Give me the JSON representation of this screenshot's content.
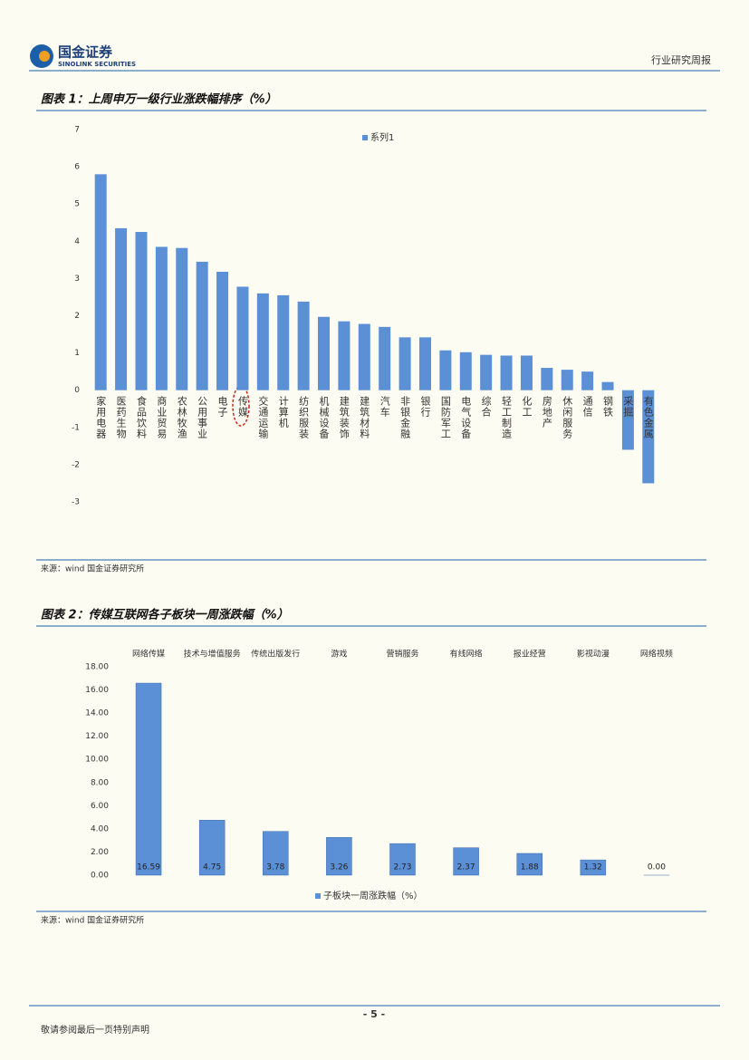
{
  "header": {
    "logo_cn": "国金证券",
    "logo_en": "SINOLINK SECURITIES",
    "right": "行业研究周报"
  },
  "figures": [
    {
      "title": "图表 1：上周申万一级行业涨跌幅排序（%）",
      "source": "来源：wind 国金证券研究所"
    },
    {
      "title": "图表 2：传媒互联网各子板块一周涨跌幅（%）",
      "source": "来源：wind 国金证券研究所"
    }
  ],
  "chart_data": [
    {
      "type": "bar",
      "legend": "top",
      "categories": [
        "家用电器",
        "医药生物",
        "食品饮料",
        "商业贸易",
        "农林牧渔",
        "公用事业",
        "电子",
        "传媒",
        "交通运输",
        "计算机",
        "纺织服装",
        "机械设备",
        "建筑装饰",
        "建筑材料",
        "汽车",
        "非银金融",
        "银行",
        "国防军工",
        "电气设备",
        "综合",
        "轻工制造",
        "化工",
        "房地产",
        "休闲服务",
        "通信",
        "钢铁",
        "采掘",
        "有色金属"
      ],
      "series": [
        {
          "name": "系列1",
          "color": "#5b8fd6",
          "values": [
            5.8,
            4.35,
            4.25,
            3.85,
            3.82,
            3.45,
            3.18,
            2.78,
            2.6,
            2.55,
            2.38,
            1.97,
            1.85,
            1.78,
            1.7,
            1.42,
            1.42,
            1.07,
            1.02,
            0.95,
            0.93,
            0.93,
            0.6,
            0.55,
            0.5,
            0.22,
            -1.6,
            -2.5
          ]
        }
      ],
      "ylim": [
        -3,
        7
      ],
      "yticks": [
        7,
        6,
        5,
        4,
        3,
        2,
        1,
        0,
        -1,
        -2,
        -3
      ]
    },
    {
      "type": "bar",
      "legend": "bottom",
      "categories": [
        "网络传媒",
        "技术与增值服务",
        "传统出版发行",
        "游戏",
        "营销服务",
        "有线网络",
        "报业经营",
        "影视动漫",
        "网络视频"
      ],
      "series": [
        {
          "name": "子板块一周涨跌幅（%）",
          "color": "#5b8fd6",
          "values": [
            16.59,
            4.75,
            3.78,
            3.26,
            2.73,
            2.37,
            1.88,
            1.32,
            0
          ],
          "value_labels": [
            "16.59",
            "4.75",
            "3.78",
            "3.26",
            "2.73",
            "2.37",
            "1.88",
            "1.32",
            "0.00"
          ]
        }
      ],
      "ylim": [
        0,
        18
      ],
      "yticks": [
        {
          "value": 0,
          "label": "0.00"
        },
        {
          "value": 2,
          "label": "2.00"
        },
        {
          "value": 4,
          "label": "4.00"
        },
        {
          "value": 6,
          "label": "6.00"
        },
        {
          "value": 8,
          "label": "8.00"
        },
        {
          "value": 10,
          "label": "10.00"
        },
        {
          "value": 12,
          "label": "12.00"
        },
        {
          "value": 14,
          "label": "14.00"
        },
        {
          "value": 16,
          "label": "16.00"
        },
        {
          "value": 18,
          "label": "18.00"
        }
      ]
    }
  ],
  "footer": {
    "page": "- 5 -",
    "notice": "敬请参阅最后一页特别声明"
  }
}
